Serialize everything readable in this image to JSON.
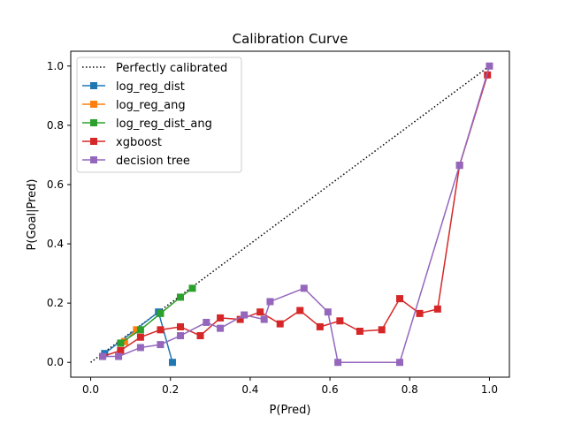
{
  "chart_data": {
    "type": "line",
    "title": "Calibration Curve",
    "xlabel": "P(Pred)",
    "ylabel": "P(Goal|Pred)",
    "xlim": [
      -0.05,
      1.05
    ],
    "ylim": [
      -0.05,
      1.05
    ],
    "xticks": [
      0.0,
      0.2,
      0.4,
      0.6,
      0.8,
      1.0
    ],
    "yticks": [
      0.0,
      0.2,
      0.4,
      0.6,
      0.8,
      1.0
    ],
    "xtick_labels": [
      "0.0",
      "0.2",
      "0.4",
      "0.6",
      "0.8",
      "1.0"
    ],
    "ytick_labels": [
      "0.0",
      "0.2",
      "0.4",
      "0.6",
      "0.8",
      "1.0"
    ],
    "grid": false,
    "legend_position": "top-left",
    "reference_line": {
      "name": "Perfectly calibrated",
      "color": "#000000",
      "style": "dotted",
      "x": [
        0,
        1
      ],
      "y": [
        0,
        1
      ]
    },
    "series": [
      {
        "name": "log_reg_dist",
        "color": "#1f77b4",
        "x": [
          0.035,
          0.17,
          0.205
        ],
        "y": [
          0.03,
          0.17,
          0.0
        ]
      },
      {
        "name": "log_reg_ang",
        "color": "#ff7f0e",
        "x": [
          0.085,
          0.115
        ],
        "y": [
          0.07,
          0.11
        ]
      },
      {
        "name": "log_reg_dist_ang",
        "color": "#2ca02c",
        "x": [
          0.075,
          0.125,
          0.175,
          0.225,
          0.255
        ],
        "y": [
          0.065,
          0.11,
          0.165,
          0.22,
          0.25
        ]
      },
      {
        "name": "xgboost",
        "color": "#d62728",
        "x": [
          0.03,
          0.075,
          0.125,
          0.175,
          0.225,
          0.275,
          0.325,
          0.375,
          0.425,
          0.475,
          0.525,
          0.575,
          0.625,
          0.675,
          0.73,
          0.775,
          0.825,
          0.87,
          0.925,
          0.995
        ],
        "y": [
          0.02,
          0.04,
          0.085,
          0.11,
          0.12,
          0.09,
          0.15,
          0.145,
          0.17,
          0.13,
          0.175,
          0.12,
          0.14,
          0.105,
          0.11,
          0.215,
          0.165,
          0.18,
          0.665,
          0.97
        ]
      },
      {
        "name": "decision tree",
        "color": "#9467bd",
        "x": [
          0.03,
          0.07,
          0.125,
          0.175,
          0.225,
          0.29,
          0.325,
          0.385,
          0.435,
          0.45,
          0.535,
          0.595,
          0.62,
          0.775,
          0.925,
          1.0
        ],
        "y": [
          0.02,
          0.02,
          0.05,
          0.06,
          0.09,
          0.135,
          0.115,
          0.16,
          0.145,
          0.205,
          0.25,
          0.17,
          0.0,
          0.0,
          0.665,
          1.0
        ]
      }
    ]
  }
}
